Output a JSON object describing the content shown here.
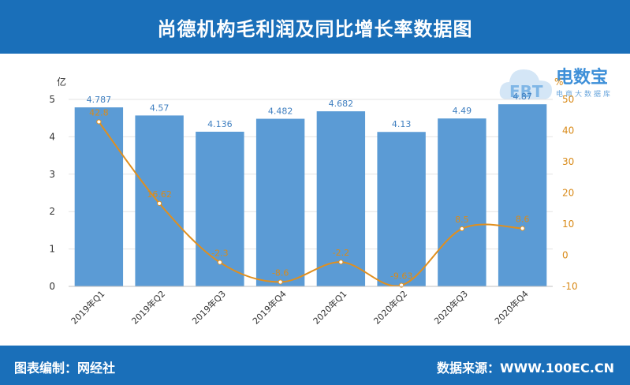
{
  "header": {
    "title": "尚德机构毛利润及同比增长率数据图"
  },
  "logo": {
    "name": "电数宝",
    "tagline": "电商大数据库",
    "mark": "EBT"
  },
  "footer": {
    "editor": "图表编制：网经社",
    "source": "数据来源：WWW.100EC.CN"
  },
  "colors": {
    "bar": "#5b9bd5",
    "line": "#e08f1e",
    "header": "#1a6fb9",
    "left_axis": "#333333",
    "right_axis": "#d98b1a"
  },
  "chart_data": {
    "type": "bar",
    "categories": [
      "2019年Q1",
      "2019年Q2",
      "2019年Q3",
      "2019年Q4",
      "2020年Q1",
      "2020年Q2",
      "2020年Q3",
      "2020年Q4"
    ],
    "series": [
      {
        "values": [
          4.787,
          4.57,
          4.136,
          4.482,
          4.682,
          4.13,
          4.49,
          4.87
        ],
        "axis": "left",
        "chart_type": "bar"
      },
      {
        "values": [
          42.8,
          16.62,
          -2.3,
          -8.6,
          -2.2,
          -9.63,
          8.5,
          8.6
        ],
        "axis": "right",
        "chart_type": "line"
      }
    ],
    "value_labels": {
      "bars": [
        "4.787",
        "4.57",
        "4.136",
        "4.482",
        "4.682",
        "4.13",
        "4.49",
        "4.87"
      ],
      "line": [
        "42.8",
        "16.62",
        "-2.3",
        "-8.6",
        "-2.2",
        "-9.63",
        "8.5",
        "8.6"
      ]
    },
    "left_axis": {
      "unit": "亿",
      "ylim": [
        0,
        5
      ],
      "ticks": [
        "0",
        "1",
        "2",
        "3",
        "4",
        "5"
      ]
    },
    "right_axis": {
      "unit": "%",
      "ylim": [
        -10,
        50
      ],
      "ticks": [
        "-10",
        "0",
        "10",
        "20",
        "30",
        "40",
        "50"
      ]
    },
    "grid": true
  }
}
